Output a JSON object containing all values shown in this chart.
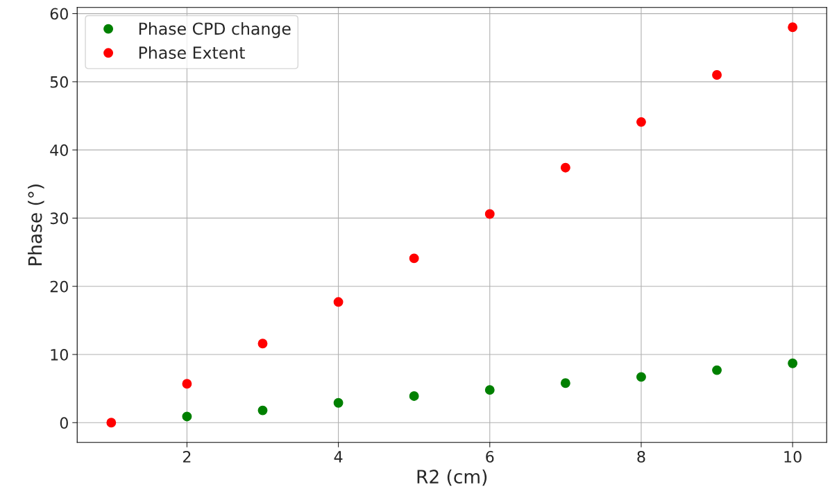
{
  "chart_data": {
    "type": "scatter",
    "xlabel": "R2 (cm)",
    "ylabel": "Phase (°)",
    "x": [
      1,
      2,
      3,
      4,
      5,
      6,
      7,
      8,
      9,
      10
    ],
    "series": [
      {
        "name": "Phase CPD change",
        "color": "#008000",
        "values": [
          null,
          0.9,
          1.8,
          2.9,
          3.9,
          4.8,
          5.8,
          6.7,
          7.7,
          8.7
        ]
      },
      {
        "name": "Phase Extent",
        "color": "#ff0000",
        "values": [
          0,
          5.7,
          11.6,
          17.7,
          24.1,
          30.6,
          37.4,
          44.1,
          51.0,
          58.0
        ]
      }
    ],
    "xlim": [
      0.55,
      10.45
    ],
    "ylim": [
      -2.9,
      60.9
    ],
    "xticks": [
      2,
      4,
      6,
      8,
      10
    ],
    "yticks": [
      0,
      10,
      20,
      30,
      40,
      50,
      60
    ],
    "grid": true,
    "legend": "top left",
    "marker": "circle"
  }
}
